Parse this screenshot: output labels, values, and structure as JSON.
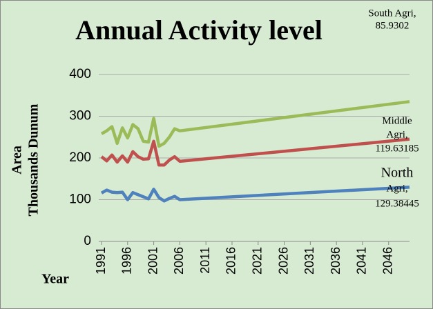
{
  "chart_data": {
    "type": "line",
    "title": "Annual Activity level",
    "y_label": [
      "Area",
      "Thousands Dunum"
    ],
    "x_label": "Year",
    "x": [
      1991,
      1992,
      1993,
      1994,
      1995,
      1996,
      1997,
      1998,
      1999,
      2000,
      2001,
      2002,
      2003,
      2004,
      2005,
      2006,
      2050
    ],
    "series": [
      {
        "name": "South Agri",
        "color": "#9bbb59",
        "values": [
          258,
          265,
          275,
          235,
          272,
          248,
          280,
          270,
          240,
          238,
          295,
          228,
          235,
          250,
          270,
          265,
          335
        ]
      },
      {
        "name": "Middle Agri",
        "color": "#c0504d",
        "values": [
          203,
          193,
          207,
          190,
          205,
          190,
          215,
          203,
          197,
          198,
          240,
          183,
          183,
          195,
          203,
          192,
          245
        ]
      },
      {
        "name": "North Agri",
        "color": "#4f81bd",
        "values": [
          116,
          123,
          118,
          117,
          118,
          100,
          117,
          112,
          107,
          102,
          125,
          105,
          97,
          103,
          108,
          100,
          130
        ]
      }
    ],
    "annotations": [
      {
        "lines": [
          "South Agri,",
          "85.9302"
        ]
      },
      {
        "lines": [
          "Middle",
          "Agri,",
          "119.63185"
        ]
      },
      {
        "lines": [
          "North",
          "Agri,",
          "129.38445"
        ]
      }
    ],
    "xlim": [
      1991,
      2050
    ],
    "xticks": [
      1991,
      1996,
      2001,
      2006,
      2011,
      2016,
      2021,
      2026,
      2031,
      2036,
      2041,
      2046
    ],
    "ylim": [
      0,
      400
    ],
    "yticks": [
      0,
      100,
      200,
      300,
      400
    ],
    "grid": true
  }
}
